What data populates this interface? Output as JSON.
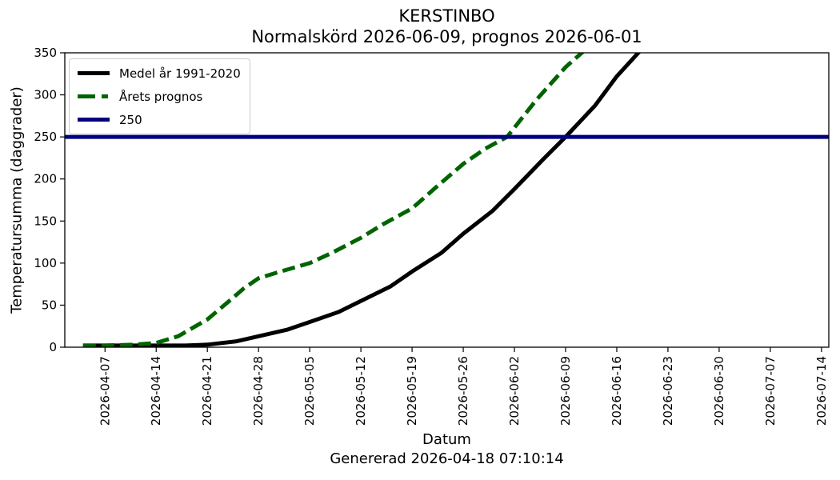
{
  "title_line1": "KERSTINBO",
  "title_line2": "Normalskörd 2026-06-09, prognos 2026-06-01",
  "footer": "Genererad 2026-04-18 07:10:14",
  "chart_data": {
    "type": "line",
    "title": "KERSTINBO\nNormalskörd 2026-06-09, prognos 2026-06-01",
    "xlabel": "Datum",
    "ylabel": "Temperatursumma (daggrader)",
    "xlim": [
      "2026-04-01T12:00",
      "2026-07-15T00:00"
    ],
    "ylim": [
      0,
      350
    ],
    "x_ticks": [
      "2026-04-07",
      "2026-04-14",
      "2026-04-21",
      "2026-04-28",
      "2026-05-05",
      "2026-05-12",
      "2026-05-19",
      "2026-05-26",
      "2026-06-02",
      "2026-06-09",
      "2026-06-16",
      "2026-06-23",
      "2026-06-30",
      "2026-07-07",
      "2026-07-14"
    ],
    "y_ticks": [
      0,
      50,
      100,
      150,
      200,
      250,
      300,
      350
    ],
    "grid": false,
    "legend_position": "upper left",
    "series": [
      {
        "name": "Medel år 1991-2020",
        "color": "#000000",
        "style": "solid",
        "points": [
          [
            "2026-04-04",
            2
          ],
          [
            "2026-04-07",
            2
          ],
          [
            "2026-04-10",
            2
          ],
          [
            "2026-04-14",
            2
          ],
          [
            "2026-04-18",
            2
          ],
          [
            "2026-04-21",
            3
          ],
          [
            "2026-04-25",
            7
          ],
          [
            "2026-04-28",
            13
          ],
          [
            "2026-05-02",
            21
          ],
          [
            "2026-05-05",
            30
          ],
          [
            "2026-05-09",
            42
          ],
          [
            "2026-05-12",
            55
          ],
          [
            "2026-05-16",
            72
          ],
          [
            "2026-05-19",
            90
          ],
          [
            "2026-05-23",
            112
          ],
          [
            "2026-05-26",
            135
          ],
          [
            "2026-05-30",
            162
          ],
          [
            "2026-06-02",
            188
          ],
          [
            "2026-06-06",
            224
          ],
          [
            "2026-06-09",
            250
          ],
          [
            "2026-06-13",
            287
          ],
          [
            "2026-06-16",
            322
          ],
          [
            "2026-06-20",
            360
          ]
        ]
      },
      {
        "name": "Årets prognos",
        "color": "#006400",
        "style": "dashed",
        "points": [
          [
            "2026-04-04",
            2
          ],
          [
            "2026-04-07",
            2
          ],
          [
            "2026-04-11",
            3
          ],
          [
            "2026-04-14",
            5
          ],
          [
            "2026-04-17",
            13
          ],
          [
            "2026-04-21",
            33
          ],
          [
            "2026-04-24",
            55
          ],
          [
            "2026-04-26",
            70
          ],
          [
            "2026-04-28",
            82
          ],
          [
            "2026-05-01",
            90
          ],
          [
            "2026-05-05",
            100
          ],
          [
            "2026-05-08",
            112
          ],
          [
            "2026-05-12",
            130
          ],
          [
            "2026-05-15",
            146
          ],
          [
            "2026-05-19",
            165
          ],
          [
            "2026-05-22",
            188
          ],
          [
            "2026-05-26",
            218
          ],
          [
            "2026-05-29",
            236
          ],
          [
            "2026-06-01",
            250
          ],
          [
            "2026-06-05",
            294
          ],
          [
            "2026-06-09",
            333
          ],
          [
            "2026-06-12",
            356
          ]
        ]
      },
      {
        "name": "250",
        "color": "#000080",
        "style": "solid",
        "hline": 250
      }
    ]
  }
}
